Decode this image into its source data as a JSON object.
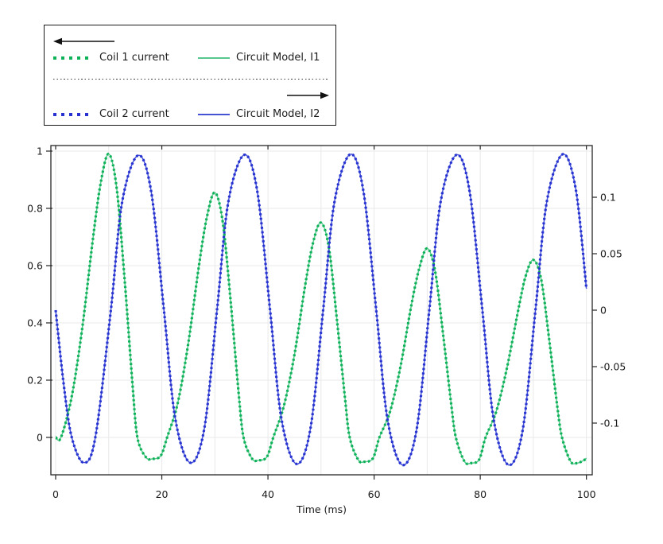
{
  "legend": {
    "coil1_label": "Coil 1 current",
    "model1_label": "Circuit Model, I1",
    "coil2_label": "Coil 2 current",
    "model2_label": "Circuit Model, I2",
    "left_arrow_icon": "left-arrow",
    "right_arrow_icon": "right-arrow"
  },
  "colors": {
    "coil1_dot": "#0db157",
    "model1_line": "#57c88e",
    "coil2_dot": "#2633d0",
    "model2_line": "#4753d6",
    "grid": "#e9e9e9",
    "frame": "#262626",
    "text": "#1a1a1a",
    "arrow": "#111111"
  },
  "chart_data": {
    "type": "line",
    "title": "",
    "xlabel": "Time (ms)",
    "grid": true,
    "legend_position": "outside-top-left",
    "xlim": [
      -0.9,
      101.1
    ],
    "x_ticks": [
      0,
      20,
      40,
      60,
      80,
      100
    ],
    "x_tick_labels": [
      "0",
      "20",
      "40",
      "60",
      "80",
      "100"
    ],
    "x_grid": [
      0,
      10,
      20,
      30,
      40,
      50,
      60,
      70,
      80,
      90,
      100
    ],
    "left_axis": {
      "lim": [
        -0.1306,
        1.0194
      ],
      "ticks": [
        0,
        0.2,
        0.4,
        0.6,
        0.8,
        1
      ],
      "tick_labels": [
        "0",
        "0.2",
        "0.4",
        "0.6",
        "0.8",
        "1"
      ]
    },
    "right_axis": {
      "lim": [
        -0.1458,
        0.1458
      ],
      "ticks": [
        -0.1,
        -0.05,
        0,
        0.05,
        0.1
      ],
      "tick_labels": [
        "-0.1",
        "-0.05",
        "0",
        "0.05",
        "0.1"
      ]
    },
    "curves": {
      "coil1": [
        [
          0,
          0
        ],
        [
          1,
          0
        ],
        [
          3,
          0.14
        ],
        [
          5,
          0.38
        ],
        [
          7,
          0.69
        ],
        [
          8.5,
          0.89
        ],
        [
          10,
          0.99
        ],
        [
          11.5,
          0.87
        ],
        [
          13,
          0.55
        ],
        [
          14.5,
          0.18
        ],
        [
          15.4,
          0
        ],
        [
          17,
          -0.069
        ],
        [
          18.2,
          -0.075
        ],
        [
          19.8,
          -0.064
        ],
        [
          21,
          0
        ],
        [
          23,
          0.12
        ],
        [
          25,
          0.33
        ],
        [
          27,
          0.6
        ],
        [
          28.5,
          0.77
        ],
        [
          30,
          0.855
        ],
        [
          31.5,
          0.75
        ],
        [
          33,
          0.47
        ],
        [
          34.5,
          0.15
        ],
        [
          35.4,
          0
        ],
        [
          37,
          -0.074
        ],
        [
          38.2,
          -0.08
        ],
        [
          39.8,
          -0.068
        ],
        [
          41,
          0
        ],
        [
          43,
          0.11
        ],
        [
          45,
          0.29
        ],
        [
          47,
          0.53
        ],
        [
          48.5,
          0.68
        ],
        [
          50,
          0.75
        ],
        [
          51.5,
          0.66
        ],
        [
          53,
          0.41
        ],
        [
          54.5,
          0.14
        ],
        [
          55.4,
          0
        ],
        [
          57,
          -0.078
        ],
        [
          58.2,
          -0.085
        ],
        [
          59.8,
          -0.072
        ],
        [
          61,
          0
        ],
        [
          63,
          0.09
        ],
        [
          65,
          0.25
        ],
        [
          67,
          0.46
        ],
        [
          68.5,
          0.59
        ],
        [
          70,
          0.66
        ],
        [
          71.5,
          0.58
        ],
        [
          73,
          0.36
        ],
        [
          74.5,
          0.12
        ],
        [
          75.4,
          0
        ],
        [
          77,
          -0.083
        ],
        [
          78.2,
          -0.09
        ],
        [
          79.8,
          -0.077
        ],
        [
          81,
          0
        ],
        [
          83,
          0.09
        ],
        [
          85,
          0.24
        ],
        [
          87,
          0.43
        ],
        [
          88.5,
          0.56
        ],
        [
          90,
          0.62
        ],
        [
          91.5,
          0.55
        ],
        [
          93,
          0.34
        ],
        [
          94.5,
          0.11
        ],
        [
          95.4,
          0
        ],
        [
          97,
          -0.083
        ],
        [
          98.2,
          -0.09
        ],
        [
          99.5,
          -0.08
        ],
        [
          100,
          -0.072
        ]
      ],
      "coil2": [
        [
          0,
          0
        ],
        [
          1.5,
          -0.065
        ],
        [
          3,
          -0.112
        ],
        [
          5.3,
          -0.135
        ],
        [
          7.5,
          -0.112
        ],
        [
          10.4,
          0
        ],
        [
          12.5,
          0.095
        ],
        [
          15.5,
          0.137
        ],
        [
          18,
          0.105
        ],
        [
          20.4,
          0
        ],
        [
          22.5,
          -0.095
        ],
        [
          25.3,
          -0.135
        ],
        [
          28,
          -0.105
        ],
        [
          30.4,
          0
        ],
        [
          32.5,
          0.095
        ],
        [
          35.5,
          0.1375
        ],
        [
          38,
          0.105
        ],
        [
          40.4,
          0
        ],
        [
          42.5,
          -0.095
        ],
        [
          45.3,
          -0.136
        ],
        [
          48,
          -0.105
        ],
        [
          50.4,
          0
        ],
        [
          52.5,
          0.095
        ],
        [
          55.5,
          0.138
        ],
        [
          58,
          0.105
        ],
        [
          60.4,
          0
        ],
        [
          62.5,
          -0.096
        ],
        [
          65.3,
          -0.137
        ],
        [
          68,
          -0.106
        ],
        [
          70.4,
          0
        ],
        [
          72.5,
          0.095
        ],
        [
          75.5,
          0.1375
        ],
        [
          78,
          0.105
        ],
        [
          80.4,
          0
        ],
        [
          82.5,
          -0.096
        ],
        [
          85.3,
          -0.137
        ],
        [
          88,
          -0.106
        ],
        [
          90.4,
          0
        ],
        [
          92.5,
          0.095
        ],
        [
          95.5,
          0.138
        ],
        [
          98,
          0.107
        ],
        [
          100,
          0.019
        ]
      ]
    },
    "series": [
      {
        "name": "Circuit Model, I1",
        "axis": "left",
        "style": "solid",
        "curve": "coil1",
        "color_key": "model1_line"
      },
      {
        "name": "Circuit Model, I2",
        "axis": "right",
        "style": "solid",
        "curve": "coil2",
        "color_key": "model2_line"
      },
      {
        "name": "Coil 1 current",
        "axis": "left",
        "style": "dotted",
        "curve": "coil1",
        "color_key": "coil1_dot"
      },
      {
        "name": "Coil 2 current",
        "axis": "right",
        "style": "dotted",
        "curve": "coil2",
        "color_key": "coil2_dot"
      }
    ]
  }
}
